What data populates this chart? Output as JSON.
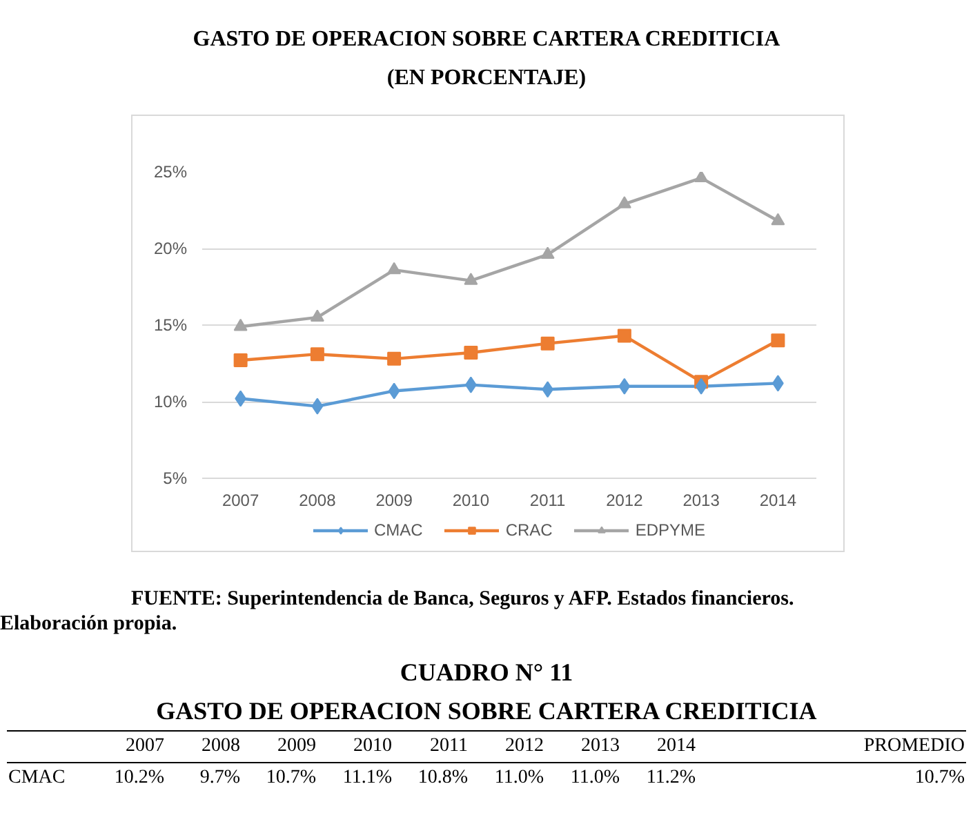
{
  "chart_data": {
    "type": "line",
    "title": "GASTO DE OPERACION SOBRE CARTERA CREDITICIA",
    "subtitle": "(EN PORCENTAJE)",
    "categories": [
      "2007",
      "2008",
      "2009",
      "2010",
      "2011",
      "2012",
      "2013",
      "2014"
    ],
    "series": [
      {
        "name": "CMAC",
        "color": "#5b9bd5",
        "marker": "diamond",
        "values": [
          10.2,
          9.7,
          10.7,
          11.1,
          10.8,
          11.0,
          11.0,
          11.2
        ]
      },
      {
        "name": "CRAC",
        "color": "#ed7d31",
        "marker": "square",
        "values": [
          12.7,
          13.1,
          12.8,
          13.2,
          13.8,
          14.3,
          11.3,
          14.0
        ]
      },
      {
        "name": "EDPYME",
        "color": "#a5a5a5",
        "marker": "triangle",
        "values": [
          14.9,
          15.5,
          18.6,
          17.9,
          19.6,
          22.9,
          24.6,
          21.8
        ]
      }
    ],
    "ylim": [
      5,
      25
    ],
    "yticks": [
      {
        "value": 5,
        "label": "5%"
      },
      {
        "value": 10,
        "label": "10%"
      },
      {
        "value": 15,
        "label": "15%"
      },
      {
        "value": 20,
        "label": "20%"
      },
      {
        "value": 25,
        "label": "25%"
      }
    ],
    "grid": "y",
    "legend": "bottom",
    "annotations": [
      "FUENTE: Superintendencia de Banca, Seguros y AFP. Estados financieros.",
      "Elaboración propia.",
      "CUADRO N° 11",
      "GASTO DE OPERACION SOBRE CARTERA CREDITICIA",
      "PROMEDIO",
      "CMAC",
      "10.7%",
      "10.2%",
      "9.7%",
      "10.7%",
      "11.1%",
      "10.8%",
      "11.0%",
      "11.0%",
      "11.2%"
    ]
  }
}
